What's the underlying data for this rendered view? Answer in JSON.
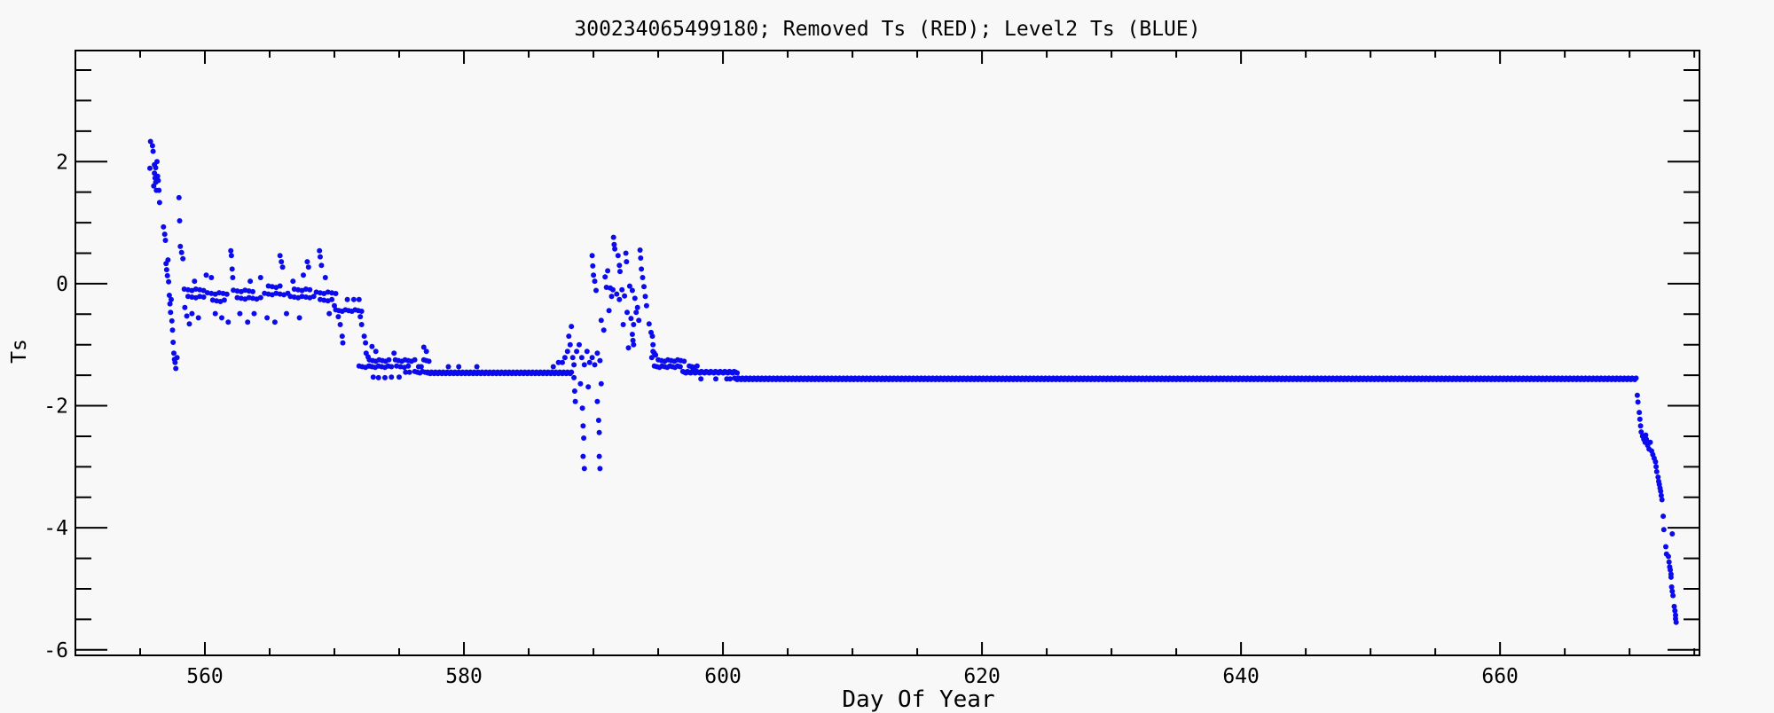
{
  "colors": {
    "background": "#f8f8f8",
    "axis": "#000000",
    "text": "#000000",
    "blue_series": "#0b0bee",
    "red_series": "#ff0000"
  },
  "chart_data": {
    "type": "scatter",
    "title": "300234065499180; Removed Ts (RED); Level2 Ts (BLUE)",
    "xlabel": "Day Of Year",
    "ylabel": "Ts",
    "xlim": [
      550,
      675.4
    ],
    "ylim": [
      -6.09,
      3.82
    ],
    "x_major_ticks": [
      560,
      580,
      600,
      620,
      640,
      660
    ],
    "x_minor_step": 5,
    "y_major_ticks": [
      2,
      0,
      -2,
      -4,
      -6
    ],
    "y_minor_step": 0.5,
    "grid": false,
    "legend": "in title",
    "series": [
      {
        "name": "Level2 Ts (BLUE)",
        "color": "#0b0bee",
        "marker": "dot",
        "points": [
          [
            555.75,
            1.89
          ],
          [
            555.8,
            2.33
          ],
          [
            555.95,
            2.26
          ],
          [
            556.0,
            2.17
          ],
          [
            556.05,
            1.6
          ],
          [
            556.1,
            1.95
          ],
          [
            556.1,
            1.81
          ],
          [
            556.15,
            1.73
          ],
          [
            556.2,
            1.9
          ],
          [
            556.2,
            1.66
          ],
          [
            556.25,
            1.53
          ],
          [
            556.3,
            2.0
          ],
          [
            556.35,
            1.76
          ],
          [
            556.4,
            1.69
          ],
          [
            556.45,
            1.53
          ],
          [
            556.5,
            1.33
          ],
          [
            556.8,
            0.93
          ],
          [
            556.9,
            0.81
          ],
          [
            556.95,
            0.71
          ],
          [
            557.0,
            0.33
          ],
          [
            557.05,
            0.23
          ],
          [
            557.1,
            0.13
          ],
          [
            557.15,
            0.39
          ],
          [
            557.2,
            0.03
          ],
          [
            558.0,
            1.41
          ],
          [
            558.05,
            1.03
          ],
          [
            558.1,
            0.61
          ],
          [
            558.2,
            0.51
          ],
          [
            558.3,
            0.41
          ],
          [
            557.25,
            -0.19
          ],
          [
            557.3,
            -0.33
          ],
          [
            557.35,
            -0.47
          ],
          [
            557.4,
            -0.26
          ],
          [
            557.45,
            -0.61
          ],
          [
            557.5,
            -0.76
          ],
          [
            557.55,
            -0.96
          ],
          [
            557.6,
            -1.14
          ],
          [
            557.65,
            -1.24
          ],
          [
            557.7,
            -1.29
          ],
          [
            557.75,
            -1.39
          ],
          [
            557.85,
            -1.21
          ],
          [
            558.45,
            -0.39
          ],
          [
            558.6,
            -0.53
          ],
          [
            558.8,
            -0.66
          ],
          [
            559.0,
            -0.49
          ],
          [
            559.2,
            0.04
          ],
          [
            559.5,
            -0.56
          ],
          [
            560.1,
            0.14
          ],
          [
            560.5,
            0.1
          ],
          [
            560.8,
            -0.49
          ],
          [
            561.3,
            -0.56
          ],
          [
            561.8,
            -0.63
          ],
          [
            562.0,
            0.54
          ],
          [
            562.05,
            0.46
          ],
          [
            562.1,
            0.24
          ],
          [
            562.15,
            0.1
          ],
          [
            562.7,
            -0.49
          ],
          [
            563.3,
            -0.63
          ],
          [
            563.5,
            0.04
          ],
          [
            563.8,
            -0.49
          ],
          [
            564.3,
            0.1
          ],
          [
            564.8,
            -0.56
          ],
          [
            565.4,
            -0.63
          ],
          [
            565.8,
            0.46
          ],
          [
            565.9,
            0.36
          ],
          [
            566.0,
            0.27
          ],
          [
            566.3,
            -0.49
          ],
          [
            566.8,
            0.04
          ],
          [
            567.3,
            -0.56
          ],
          [
            567.6,
            0.14
          ],
          [
            567.9,
            0.36
          ],
          [
            568.0,
            0.27
          ],
          [
            568.85,
            0.54
          ],
          [
            568.9,
            0.44
          ],
          [
            569.0,
            0.3
          ],
          [
            569.3,
            0.1
          ],
          [
            569.6,
            -0.49
          ],
          [
            570.0,
            -0.36
          ],
          [
            570.3,
            -0.54
          ],
          [
            570.45,
            -0.67
          ],
          [
            570.6,
            -0.86
          ],
          [
            570.65,
            -0.97
          ],
          [
            571.0,
            -0.26
          ],
          [
            571.5,
            -0.26
          ],
          [
            571.9,
            -0.26
          ],
          [
            572.0,
            -0.54
          ],
          [
            572.1,
            -0.67
          ],
          [
            572.3,
            -0.86
          ],
          [
            572.4,
            -0.97
          ],
          [
            572.45,
            -1.14
          ],
          [
            572.6,
            -1.2
          ],
          [
            572.7,
            -1.35
          ],
          [
            572.9,
            -1.03
          ],
          [
            573.0,
            -1.53
          ],
          [
            573.2,
            -1.11
          ],
          [
            573.4,
            -1.54
          ],
          [
            573.9,
            -1.54
          ],
          [
            574.4,
            -1.53
          ],
          [
            574.6,
            -1.14
          ],
          [
            575.0,
            -1.53
          ],
          [
            575.5,
            -1.45
          ],
          [
            575.8,
            -1.45
          ],
          [
            576.5,
            -1.36
          ],
          [
            576.7,
            -1.36
          ],
          [
            576.9,
            -1.04
          ],
          [
            577.1,
            -1.11
          ],
          [
            578.8,
            -1.36
          ],
          [
            579.6,
            -1.36
          ],
          [
            581.0,
            -1.36
          ],
          [
            586.9,
            -1.36
          ],
          [
            587.3,
            -1.29
          ],
          [
            587.6,
            -1.29
          ],
          [
            587.8,
            -1.21
          ],
          [
            588.0,
            -1.11
          ],
          [
            588.1,
            -0.86
          ],
          [
            588.2,
            -1.0
          ],
          [
            588.3,
            -0.7
          ],
          [
            588.4,
            -1.21
          ],
          [
            588.5,
            -1.33
          ],
          [
            588.7,
            -1.11
          ],
          [
            588.9,
            -1.0
          ],
          [
            589.1,
            -1.21
          ],
          [
            589.3,
            -1.33
          ],
          [
            589.5,
            -1.11
          ],
          [
            589.7,
            -1.29
          ],
          [
            589.9,
            -1.21
          ],
          [
            590.1,
            -1.33
          ],
          [
            590.3,
            -1.14
          ],
          [
            590.5,
            -1.26
          ],
          [
            588.5,
            -1.54
          ],
          [
            588.55,
            -1.76
          ],
          [
            588.6,
            -1.93
          ],
          [
            589.0,
            -1.64
          ],
          [
            589.15,
            -2.04
          ],
          [
            589.2,
            -2.33
          ],
          [
            589.25,
            -2.53
          ],
          [
            589.2,
            -2.83
          ],
          [
            589.3,
            -3.03
          ],
          [
            589.6,
            -1.69
          ],
          [
            590.3,
            -1.93
          ],
          [
            590.4,
            -2.24
          ],
          [
            590.45,
            -2.44
          ],
          [
            590.45,
            -2.83
          ],
          [
            590.5,
            -3.03
          ],
          [
            590.6,
            -1.64
          ],
          [
            589.9,
            0.46
          ],
          [
            589.95,
            0.29
          ],
          [
            590.0,
            0.14
          ],
          [
            590.1,
            0.04
          ],
          [
            590.2,
            -0.11
          ],
          [
            590.6,
            -0.6
          ],
          [
            590.8,
            -0.76
          ],
          [
            590.9,
            0.11
          ],
          [
            591.0,
            -0.06
          ],
          [
            591.1,
            0.21
          ],
          [
            591.2,
            -0.44
          ],
          [
            591.3,
            -0.07
          ],
          [
            591.4,
            -0.21
          ],
          [
            591.55,
            0.76
          ],
          [
            591.6,
            0.64
          ],
          [
            591.65,
            0.57
          ],
          [
            591.9,
            0.46
          ],
          [
            592.0,
            0.3
          ],
          [
            592.05,
            0.2
          ],
          [
            591.5,
            -0.1
          ],
          [
            591.8,
            -0.17
          ],
          [
            592.0,
            -0.26
          ],
          [
            592.2,
            -0.1
          ],
          [
            592.3,
            -0.67
          ],
          [
            592.4,
            -0.2
          ],
          [
            592.5,
            0.5
          ],
          [
            592.55,
            0.36
          ],
          [
            592.6,
            -0.47
          ],
          [
            592.7,
            -1.05
          ],
          [
            592.8,
            -0.04
          ],
          [
            592.9,
            -0.57
          ],
          [
            593.0,
            -0.83
          ],
          [
            593.0,
            -0.11
          ],
          [
            593.05,
            -0.93
          ],
          [
            593.1,
            -1.0
          ],
          [
            593.1,
            -0.67
          ],
          [
            593.2,
            -0.24
          ],
          [
            593.3,
            -0.47
          ],
          [
            593.4,
            -0.39
          ],
          [
            593.5,
            -0.6
          ],
          [
            593.6,
            0.55
          ],
          [
            593.65,
            0.42
          ],
          [
            593.7,
            0.24
          ],
          [
            593.8,
            0.1
          ],
          [
            593.9,
            -0.05
          ],
          [
            594.0,
            -0.21
          ],
          [
            594.1,
            -0.36
          ],
          [
            594.3,
            -0.66
          ],
          [
            594.45,
            -0.8
          ],
          [
            594.55,
            -0.86
          ],
          [
            594.6,
            -1.0
          ],
          [
            594.7,
            -1.14
          ],
          [
            594.5,
            -1.21
          ],
          [
            594.6,
            -1.11
          ],
          [
            594.8,
            -1.17
          ],
          [
            598.3,
            -1.56
          ],
          [
            599.45,
            -1.56
          ],
          [
            600.3,
            -1.56
          ],
          [
            600.55,
            -1.56
          ],
          [
            670.6,
            -1.83
          ],
          [
            670.65,
            -1.94
          ],
          [
            670.75,
            -2.11
          ],
          [
            670.8,
            -2.22
          ],
          [
            670.85,
            -2.33
          ],
          [
            670.9,
            -2.43
          ],
          [
            671.0,
            -2.5
          ],
          [
            671.1,
            -2.55
          ],
          [
            671.2,
            -2.6
          ],
          [
            671.25,
            -2.48
          ],
          [
            671.3,
            -2.55
          ],
          [
            671.4,
            -2.65
          ],
          [
            671.5,
            -2.71
          ],
          [
            671.6,
            -2.6
          ],
          [
            671.7,
            -2.74
          ],
          [
            671.8,
            -2.8
          ],
          [
            671.9,
            -2.86
          ],
          [
            672.0,
            -2.92
          ],
          [
            672.05,
            -3.0
          ],
          [
            672.1,
            -3.08
          ],
          [
            672.2,
            -3.17
          ],
          [
            672.25,
            -3.24
          ],
          [
            672.3,
            -3.29
          ],
          [
            672.35,
            -3.35
          ],
          [
            672.4,
            -3.4
          ],
          [
            672.45,
            -3.47
          ],
          [
            672.5,
            -3.54
          ],
          [
            672.6,
            -3.81
          ],
          [
            672.65,
            -4.03
          ],
          [
            673.3,
            -4.1
          ],
          [
            672.8,
            -4.31
          ],
          [
            672.85,
            -4.43
          ],
          [
            673.0,
            -4.47
          ],
          [
            673.05,
            -4.56
          ],
          [
            673.1,
            -4.64
          ],
          [
            673.15,
            -4.69
          ],
          [
            673.2,
            -4.76
          ],
          [
            673.2,
            -4.81
          ],
          [
            673.25,
            -4.97
          ],
          [
            673.3,
            -5.04
          ],
          [
            673.35,
            -5.11
          ],
          [
            673.45,
            -5.29
          ],
          [
            673.5,
            -5.36
          ],
          [
            673.55,
            -5.43
          ],
          [
            673.55,
            -5.49
          ],
          [
            673.6,
            -5.55
          ]
        ],
        "runs": [
          [
            558.4,
            560.1,
            -0.1,
            0.3
          ],
          [
            558.7,
            559.9,
            -0.22,
            0.3
          ],
          [
            560.2,
            561.9,
            -0.16,
            0.3
          ],
          [
            560.6,
            561.5,
            -0.28,
            0.3
          ],
          [
            562.2,
            563.9,
            -0.12,
            0.3
          ],
          [
            562.5,
            564.4,
            -0.24,
            0.3
          ],
          [
            564.6,
            566.4,
            -0.17,
            0.3
          ],
          [
            564.9,
            565.9,
            -0.05,
            0.3
          ],
          [
            566.6,
            568.4,
            -0.22,
            0.3
          ],
          [
            566.9,
            568.2,
            -0.1,
            0.3
          ],
          [
            568.6,
            570.3,
            -0.15,
            0.3
          ],
          [
            568.9,
            570.0,
            -0.27,
            0.3
          ],
          [
            570.1,
            572.2,
            -0.44,
            0.25
          ],
          [
            571.9,
            574.5,
            -1.36,
            0.25
          ],
          [
            572.7,
            574.4,
            -1.26,
            0.25
          ],
          [
            574.7,
            576.2,
            -1.26,
            0.25
          ],
          [
            574.8,
            575.9,
            -1.36,
            0.3
          ],
          [
            576.2,
            577.2,
            -1.45,
            0.2
          ],
          [
            576.9,
            577.3,
            -1.26,
            0.2
          ],
          [
            577.2,
            588.3,
            -1.46,
            0.1
          ],
          [
            594.7,
            596.8,
            -1.36,
            0.2
          ],
          [
            595.0,
            597.1,
            -1.26,
            0.25
          ],
          [
            597.4,
            598.0,
            -1.36,
            0.2
          ],
          [
            596.9,
            601.2,
            -1.45,
            0.12
          ],
          [
            600.9,
            670.5,
            -1.56,
            0.1
          ]
        ]
      },
      {
        "name": "Removed Ts (RED)",
        "color": "#ff0000",
        "marker": "dot",
        "points": [],
        "runs": []
      }
    ]
  }
}
